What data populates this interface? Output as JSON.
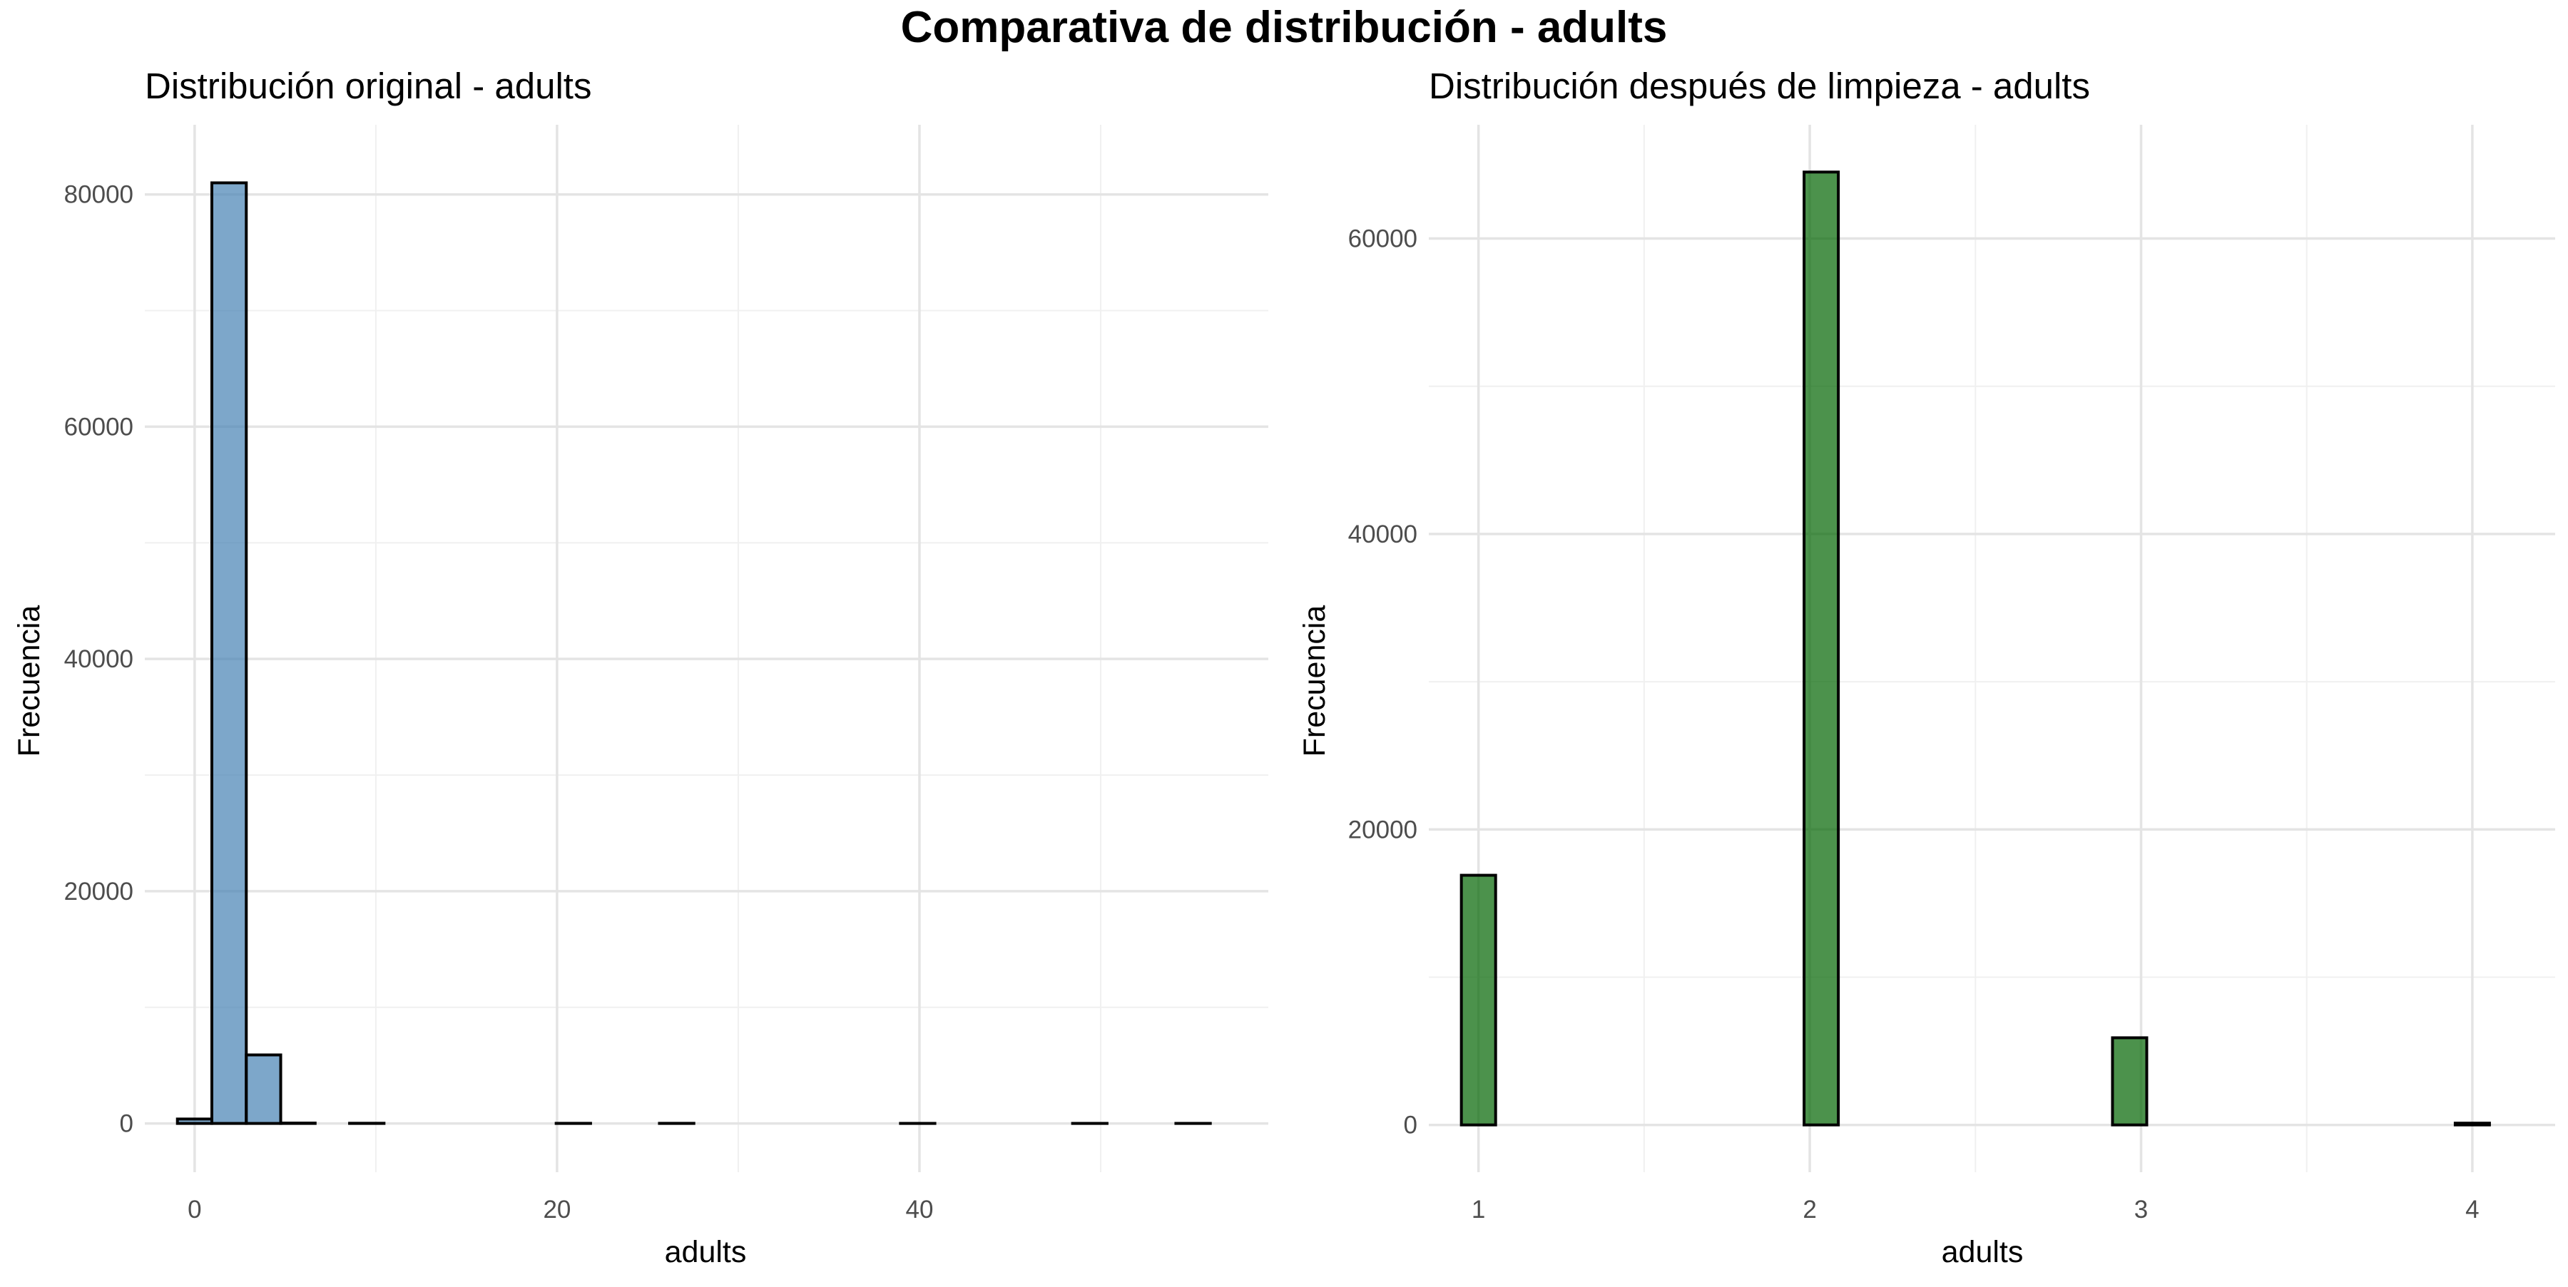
{
  "figure": {
    "title": "Comparativa de distribución - adults"
  },
  "chart_data": [
    {
      "type": "bar",
      "subtype": "histogram",
      "title": "Distribución original - adults",
      "xlabel": "adults",
      "ylabel": "Frecuencia",
      "xlim": [
        -2.75,
        59.25
      ],
      "ylim": [
        -4200,
        86000
      ],
      "x_ticks": [
        0,
        20,
        40
      ],
      "x_tick_labels": [
        "0",
        "20",
        "40"
      ],
      "x_minor_ticks": [
        10,
        30,
        50
      ],
      "y_ticks": [
        0,
        20000,
        40000,
        60000,
        80000
      ],
      "y_tick_labels": [
        "0",
        "20000",
        "40000",
        "60000",
        "80000"
      ],
      "y_minor_ticks": [
        10000,
        30000,
        50000,
        70000
      ],
      "grid": true,
      "bar_color": "#4682B4",
      "bar_opacity": 0.7,
      "bar_edge_color": "#000000",
      "bins": [
        {
          "x0": -0.95,
          "x1": 0.95,
          "count": 380
        },
        {
          "x0": 0.95,
          "x1": 2.85,
          "count": 81000
        },
        {
          "x0": 2.85,
          "x1": 4.75,
          "count": 5900
        },
        {
          "x0": 4.75,
          "x1": 6.65,
          "count": 30
        },
        {
          "x0": 6.65,
          "x1": 8.55,
          "count": 0
        },
        {
          "x0": 8.55,
          "x1": 10.45,
          "count": 15
        },
        {
          "x0": 10.45,
          "x1": 12.35,
          "count": 0
        },
        {
          "x0": 12.35,
          "x1": 14.25,
          "count": 0
        },
        {
          "x0": 14.25,
          "x1": 16.15,
          "count": 0
        },
        {
          "x0": 16.15,
          "x1": 18.05,
          "count": 0
        },
        {
          "x0": 18.05,
          "x1": 19.95,
          "count": 0
        },
        {
          "x0": 19.95,
          "x1": 21.85,
          "count": 10
        },
        {
          "x0": 21.85,
          "x1": 23.75,
          "count": 0
        },
        {
          "x0": 23.75,
          "x1": 25.65,
          "count": 0
        },
        {
          "x0": 25.65,
          "x1": 27.55,
          "count": 10
        },
        {
          "x0": 27.55,
          "x1": 29.45,
          "count": 0
        },
        {
          "x0": 29.45,
          "x1": 31.35,
          "count": 0
        },
        {
          "x0": 31.35,
          "x1": 33.25,
          "count": 0
        },
        {
          "x0": 33.25,
          "x1": 35.15,
          "count": 0
        },
        {
          "x0": 35.15,
          "x1": 37.05,
          "count": 0
        },
        {
          "x0": 37.05,
          "x1": 38.95,
          "count": 0
        },
        {
          "x0": 38.95,
          "x1": 40.85,
          "count": 5
        },
        {
          "x0": 40.85,
          "x1": 42.75,
          "count": 0
        },
        {
          "x0": 42.75,
          "x1": 44.65,
          "count": 0
        },
        {
          "x0": 44.65,
          "x1": 46.55,
          "count": 0
        },
        {
          "x0": 46.55,
          "x1": 48.45,
          "count": 0
        },
        {
          "x0": 48.45,
          "x1": 50.35,
          "count": 5
        },
        {
          "x0": 50.35,
          "x1": 52.25,
          "count": 0
        },
        {
          "x0": 52.25,
          "x1": 54.15,
          "count": 0
        },
        {
          "x0": 54.15,
          "x1": 56.05,
          "count": 5
        }
      ]
    },
    {
      "type": "bar",
      "subtype": "histogram",
      "title": "Distribución después de limpieza - adults",
      "xlabel": "adults",
      "ylabel": "Frecuencia",
      "xlim": [
        0.85,
        4.25
      ],
      "ylim": [
        -3200,
        67700
      ],
      "x_ticks": [
        1,
        2,
        3,
        4
      ],
      "x_tick_labels": [
        "1",
        "2",
        "3",
        "4"
      ],
      "x_minor_ticks": [
        1.5,
        2.5,
        3.5
      ],
      "y_ticks": [
        0,
        20000,
        40000,
        60000
      ],
      "y_tick_labels": [
        "0",
        "20000",
        "40000",
        "60000"
      ],
      "y_minor_ticks": [
        10000,
        30000,
        50000
      ],
      "grid": true,
      "bar_color": "#006400",
      "bar_opacity": 0.7,
      "bar_edge_color": "#000000",
      "bins": [
        {
          "x0": 0.9483,
          "x1": 1.0517,
          "count": 16900
        },
        {
          "x0": 1.0517,
          "x1": 1.1552,
          "count": 0
        },
        {
          "x0": 1.1552,
          "x1": 1.2586,
          "count": 0
        },
        {
          "x0": 1.2586,
          "x1": 1.3621,
          "count": 0
        },
        {
          "x0": 1.3621,
          "x1": 1.4655,
          "count": 0
        },
        {
          "x0": 1.4655,
          "x1": 1.569,
          "count": 0
        },
        {
          "x0": 1.569,
          "x1": 1.6724,
          "count": 0
        },
        {
          "x0": 1.6724,
          "x1": 1.7759,
          "count": 0
        },
        {
          "x0": 1.7759,
          "x1": 1.8793,
          "count": 0
        },
        {
          "x0": 1.8793,
          "x1": 1.9828,
          "count": 0
        },
        {
          "x0": 1.9828,
          "x1": 2.0862,
          "count": 64500
        },
        {
          "x0": 2.0862,
          "x1": 2.1897,
          "count": 0
        },
        {
          "x0": 2.1897,
          "x1": 2.2931,
          "count": 0
        },
        {
          "x0": 2.2931,
          "x1": 2.3966,
          "count": 0
        },
        {
          "x0": 2.3966,
          "x1": 2.5,
          "count": 0
        },
        {
          "x0": 2.5,
          "x1": 2.6034,
          "count": 0
        },
        {
          "x0": 2.6034,
          "x1": 2.7069,
          "count": 0
        },
        {
          "x0": 2.7069,
          "x1": 2.8103,
          "count": 0
        },
        {
          "x0": 2.8103,
          "x1": 2.9138,
          "count": 0
        },
        {
          "x0": 2.9138,
          "x1": 3.0172,
          "count": 5900
        },
        {
          "x0": 3.0172,
          "x1": 3.1207,
          "count": 0
        },
        {
          "x0": 3.1207,
          "x1": 3.2241,
          "count": 0
        },
        {
          "x0": 3.2241,
          "x1": 3.3276,
          "count": 0
        },
        {
          "x0": 3.3276,
          "x1": 3.431,
          "count": 0
        },
        {
          "x0": 3.431,
          "x1": 3.5345,
          "count": 0
        },
        {
          "x0": 3.5345,
          "x1": 3.6379,
          "count": 0
        },
        {
          "x0": 3.6379,
          "x1": 3.7414,
          "count": 0
        },
        {
          "x0": 3.7414,
          "x1": 3.8448,
          "count": 0
        },
        {
          "x0": 3.8448,
          "x1": 3.9483,
          "count": 0
        },
        {
          "x0": 3.9483,
          "x1": 4.0517,
          "count": 120
        }
      ]
    }
  ]
}
